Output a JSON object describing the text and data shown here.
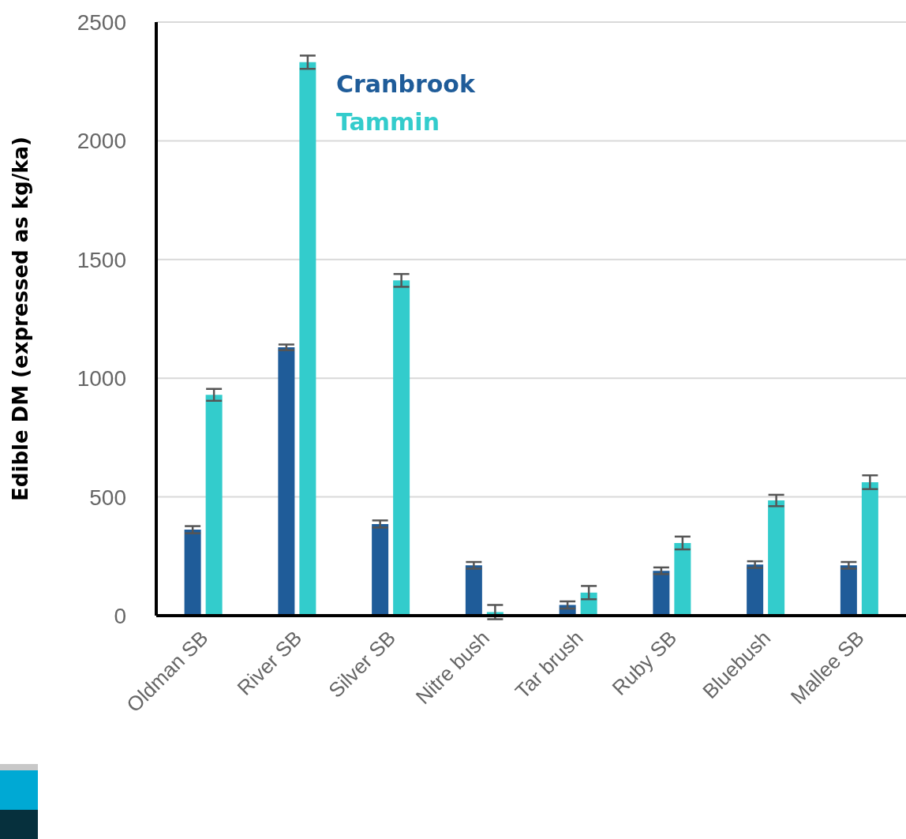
{
  "chart_data": {
    "type": "bar",
    "ylabel": "Edible DM (expressed as kg/ka)",
    "categories": [
      "Oldman SB",
      "River SB",
      "Silver SB",
      "Nitre bush",
      "Tar brush",
      "Ruby SB",
      "Bluebush",
      "Mallee SB"
    ],
    "series": [
      {
        "name": "Cranbrook",
        "color": "#1f5c99",
        "values": [
          362,
          1130,
          386,
          212,
          45,
          189,
          215,
          212
        ],
        "errors": [
          15,
          12,
          15,
          14,
          15,
          14,
          14,
          14
        ]
      },
      {
        "name": "Tammin",
        "color": "#33cccc",
        "values": [
          930,
          2331,
          1412,
          15,
          97,
          306,
          485,
          562
        ],
        "errors": [
          25,
          28,
          27,
          30,
          28,
          27,
          24,
          29
        ]
      }
    ],
    "ylim": [
      0,
      2500
    ],
    "yticks": [
      0,
      500,
      1000,
      1500,
      2000,
      2500
    ],
    "grid": "y",
    "legend": "top"
  }
}
